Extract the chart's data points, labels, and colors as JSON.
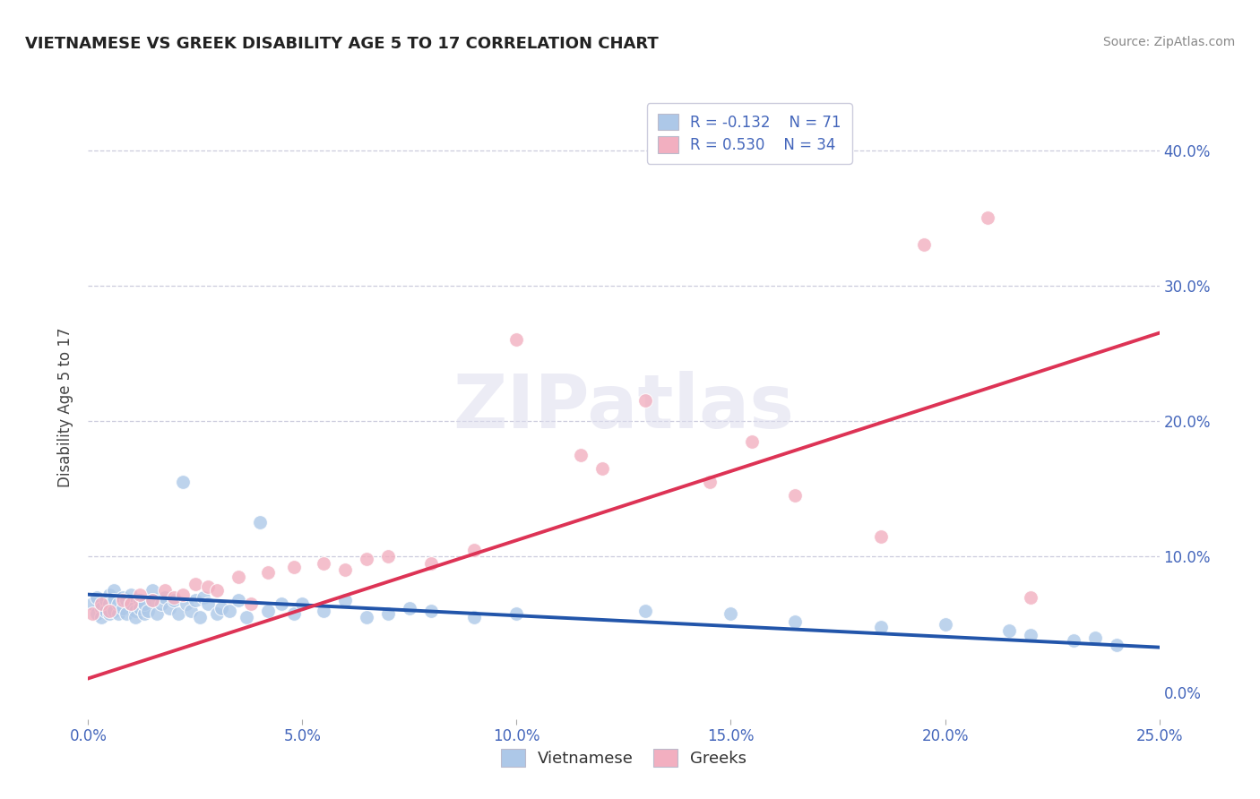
{
  "title": "VIETNAMESE VS GREEK DISABILITY AGE 5 TO 17 CORRELATION CHART",
  "source": "Source: ZipAtlas.com",
  "ylabel": "Disability Age 5 to 17",
  "xlim": [
    0.0,
    0.25
  ],
  "ylim": [
    -0.02,
    0.44
  ],
  "xticks": [
    0.0,
    0.05,
    0.1,
    0.15,
    0.2,
    0.25
  ],
  "yticks": [
    0.0,
    0.1,
    0.2,
    0.3,
    0.4
  ],
  "blue_R": -0.132,
  "blue_N": 71,
  "pink_R": 0.53,
  "pink_N": 34,
  "blue_color": "#adc8e8",
  "pink_color": "#f2afc0",
  "blue_line_color": "#2255aa",
  "pink_line_color": "#dd3355",
  "background_color": "#ffffff",
  "grid_color": "#ccccdd",
  "title_color": "#222222",
  "axis_tick_color": "#4466bb",
  "legend_label_blue": "Vietnamese",
  "legend_label_pink": "Greeks",
  "watermark_text": "ZIPatlas",
  "blue_line_x0": 0.0,
  "blue_line_y0": 0.072,
  "blue_line_x1": 0.25,
  "blue_line_y1": 0.033,
  "pink_line_x0": 0.0,
  "pink_line_y0": 0.01,
  "pink_line_x1": 0.25,
  "pink_line_y1": 0.265,
  "viet_x": [
    0.001,
    0.002,
    0.002,
    0.003,
    0.003,
    0.004,
    0.004,
    0.005,
    0.005,
    0.005,
    0.006,
    0.006,
    0.006,
    0.007,
    0.007,
    0.008,
    0.008,
    0.009,
    0.009,
    0.01,
    0.01,
    0.011,
    0.011,
    0.012,
    0.012,
    0.013,
    0.013,
    0.014,
    0.015,
    0.015,
    0.016,
    0.017,
    0.018,
    0.019,
    0.02,
    0.021,
    0.022,
    0.023,
    0.024,
    0.025,
    0.026,
    0.027,
    0.028,
    0.03,
    0.031,
    0.033,
    0.035,
    0.037,
    0.04,
    0.042,
    0.045,
    0.048,
    0.05,
    0.055,
    0.06,
    0.065,
    0.07,
    0.075,
    0.08,
    0.09,
    0.1,
    0.13,
    0.15,
    0.165,
    0.185,
    0.2,
    0.215,
    0.22,
    0.23,
    0.235,
    0.24
  ],
  "viet_y": [
    0.065,
    0.07,
    0.058,
    0.062,
    0.055,
    0.068,
    0.06,
    0.072,
    0.065,
    0.058,
    0.075,
    0.068,
    0.06,
    0.058,
    0.065,
    0.07,
    0.062,
    0.068,
    0.058,
    0.065,
    0.072,
    0.06,
    0.055,
    0.068,
    0.062,
    0.058,
    0.065,
    0.06,
    0.075,
    0.068,
    0.058,
    0.065,
    0.07,
    0.062,
    0.068,
    0.058,
    0.155,
    0.065,
    0.06,
    0.068,
    0.055,
    0.07,
    0.065,
    0.058,
    0.062,
    0.06,
    0.068,
    0.055,
    0.125,
    0.06,
    0.065,
    0.058,
    0.065,
    0.06,
    0.068,
    0.055,
    0.058,
    0.062,
    0.06,
    0.055,
    0.058,
    0.06,
    0.058,
    0.052,
    0.048,
    0.05,
    0.045,
    0.042,
    0.038,
    0.04,
    0.035
  ],
  "greek_x": [
    0.001,
    0.003,
    0.005,
    0.008,
    0.01,
    0.012,
    0.015,
    0.018,
    0.02,
    0.022,
    0.025,
    0.028,
    0.03,
    0.035,
    0.038,
    0.042,
    0.048,
    0.055,
    0.06,
    0.065,
    0.07,
    0.08,
    0.09,
    0.1,
    0.115,
    0.12,
    0.13,
    0.145,
    0.155,
    0.165,
    0.185,
    0.195,
    0.21,
    0.22
  ],
  "greek_y": [
    0.058,
    0.065,
    0.06,
    0.068,
    0.065,
    0.072,
    0.068,
    0.075,
    0.07,
    0.072,
    0.08,
    0.078,
    0.075,
    0.085,
    0.065,
    0.088,
    0.092,
    0.095,
    0.09,
    0.098,
    0.1,
    0.095,
    0.105,
    0.26,
    0.175,
    0.165,
    0.215,
    0.155,
    0.185,
    0.145,
    0.115,
    0.33,
    0.35,
    0.07
  ]
}
